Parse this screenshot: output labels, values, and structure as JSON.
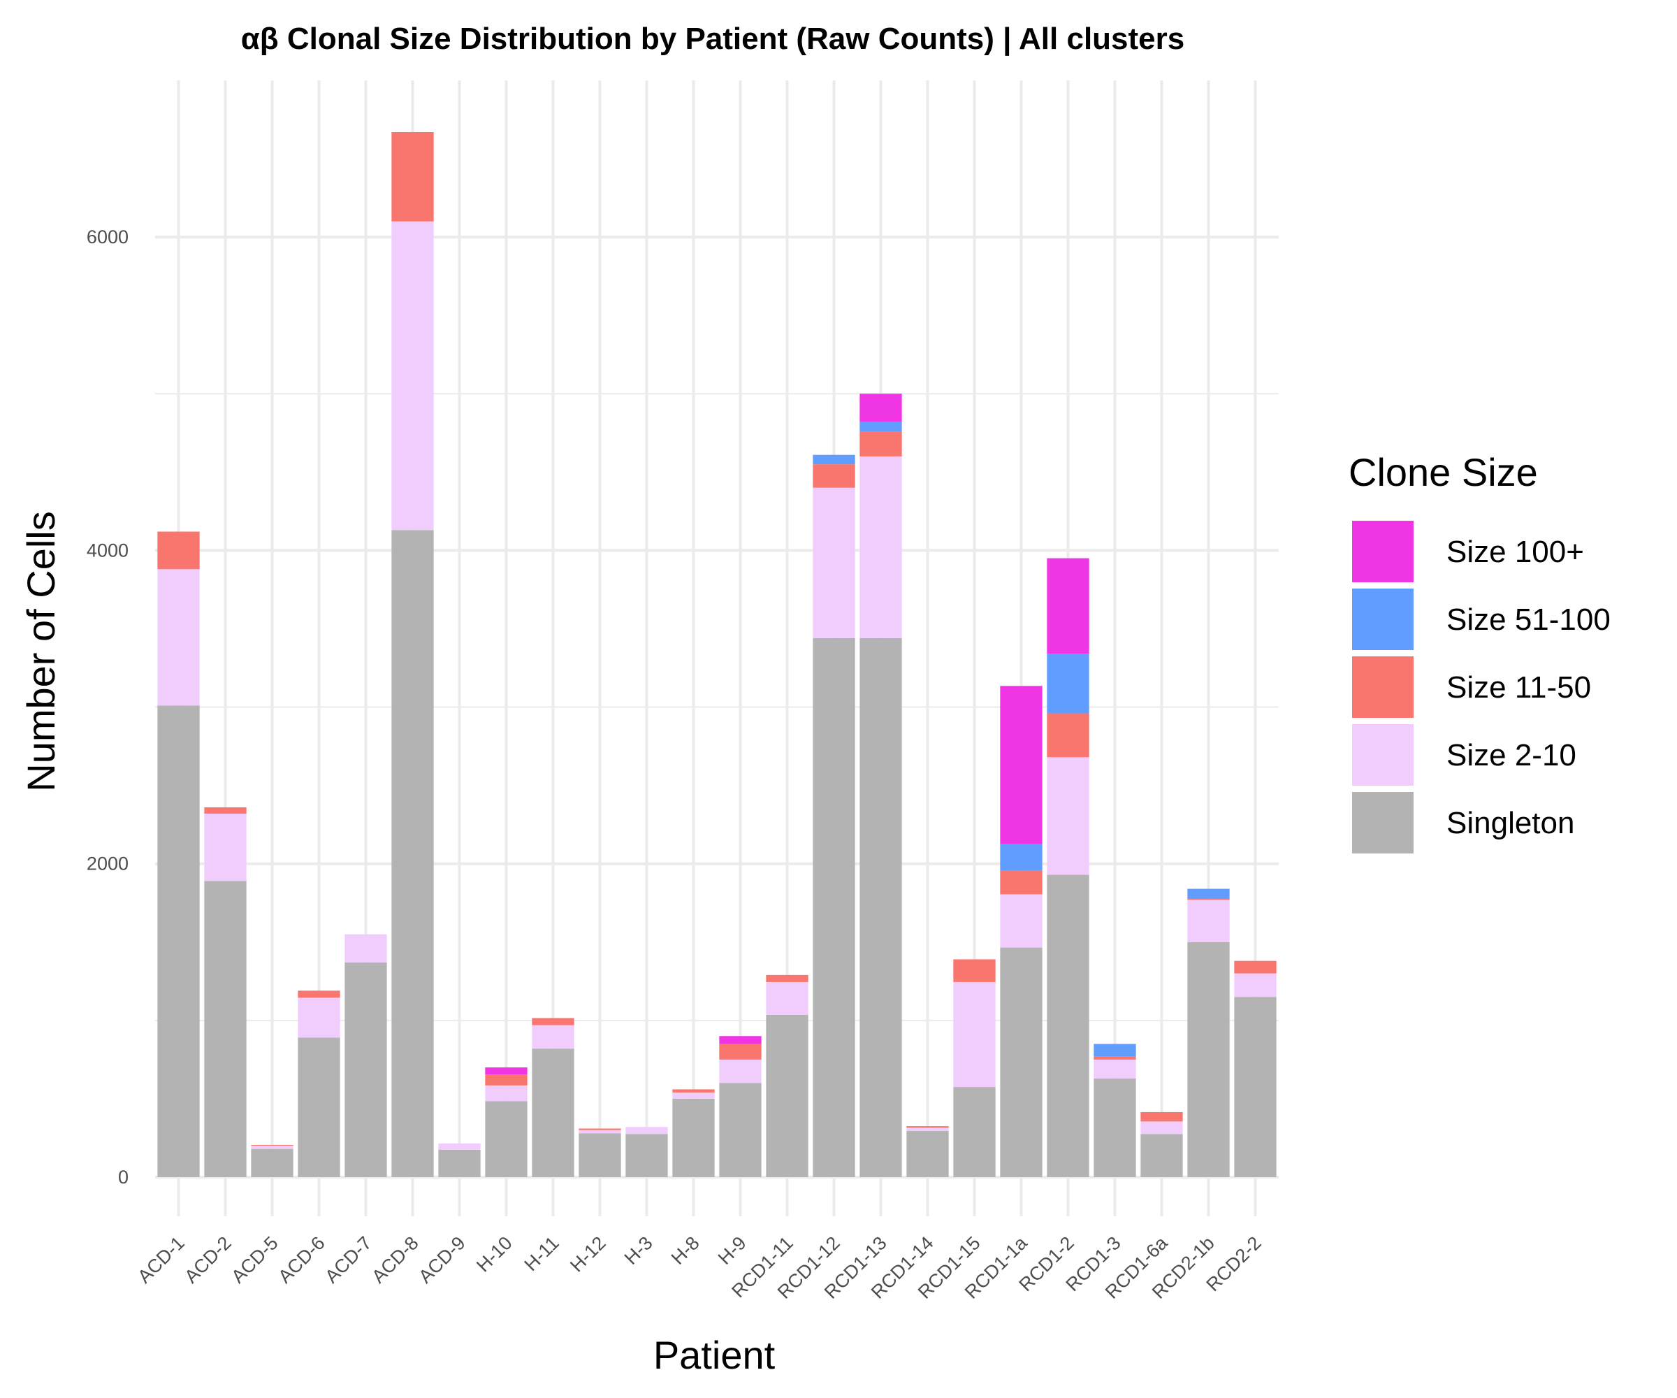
{
  "chart_data": {
    "type": "bar",
    "stacked": true,
    "title": "αβ Clonal Size Distribution by Patient (Raw Counts) | All clusters",
    "xlabel": "Patient",
    "ylabel": "Number of Cells",
    "ylim": [
      -250,
      7000
    ],
    "yticks": [
      0,
      2000,
      4000,
      6000
    ],
    "grid": true,
    "legend_title": "Clone Size",
    "legend_position": "right",
    "categories": [
      "ACD-1",
      "ACD-2",
      "ACD-5",
      "ACD-6",
      "ACD-7",
      "ACD-8",
      "ACD-9",
      "H-10",
      "H-11",
      "H-12",
      "H-3",
      "H-8",
      "H-9",
      "RCD1-11",
      "RCD1-12",
      "RCD1-13",
      "RCD1-14",
      "RCD1-15",
      "RCD1-1a",
      "RCD1-2",
      "RCD1-3",
      "RCD1-6a",
      "RCD2-1b",
      "RCD2-2"
    ],
    "series": [
      {
        "name": "Singleton",
        "color": "#b3b3b3",
        "values": [
          3010,
          1890,
          180,
          890,
          1370,
          4130,
          175,
          485,
          820,
          280,
          275,
          500,
          600,
          1035,
          3440,
          3440,
          295,
          575,
          1465,
          1930,
          630,
          275,
          1500,
          1150
        ]
      },
      {
        "name": "Size 2-10",
        "color": "#f0cdfd",
        "values": [
          870,
          430,
          20,
          255,
          180,
          1970,
          40,
          100,
          150,
          20,
          45,
          40,
          150,
          210,
          960,
          1160,
          20,
          670,
          340,
          750,
          120,
          80,
          270,
          150
        ]
      },
      {
        "name": "Size 11-50",
        "color": "#f8766d",
        "values": [
          240,
          40,
          5,
          45,
          0,
          570,
          0,
          70,
          45,
          10,
          0,
          20,
          100,
          45,
          150,
          160,
          10,
          145,
          150,
          280,
          20,
          60,
          10,
          80
        ]
      },
      {
        "name": "Size 51-100",
        "color": "#619cff",
        "values": [
          0,
          0,
          0,
          0,
          0,
          0,
          0,
          0,
          0,
          0,
          0,
          0,
          0,
          0,
          60,
          60,
          0,
          0,
          170,
          380,
          80,
          0,
          60,
          0
        ]
      },
      {
        "name": "Size 100+",
        "color": "#f035e5",
        "values": [
          0,
          0,
          0,
          0,
          0,
          0,
          0,
          45,
          0,
          0,
          0,
          0,
          50,
          0,
          0,
          180,
          0,
          0,
          1010,
          610,
          0,
          0,
          0,
          0
        ]
      }
    ],
    "legend_order": [
      "Size 100+",
      "Size 51-100",
      "Size 11-50",
      "Size 2-10",
      "Singleton"
    ]
  }
}
